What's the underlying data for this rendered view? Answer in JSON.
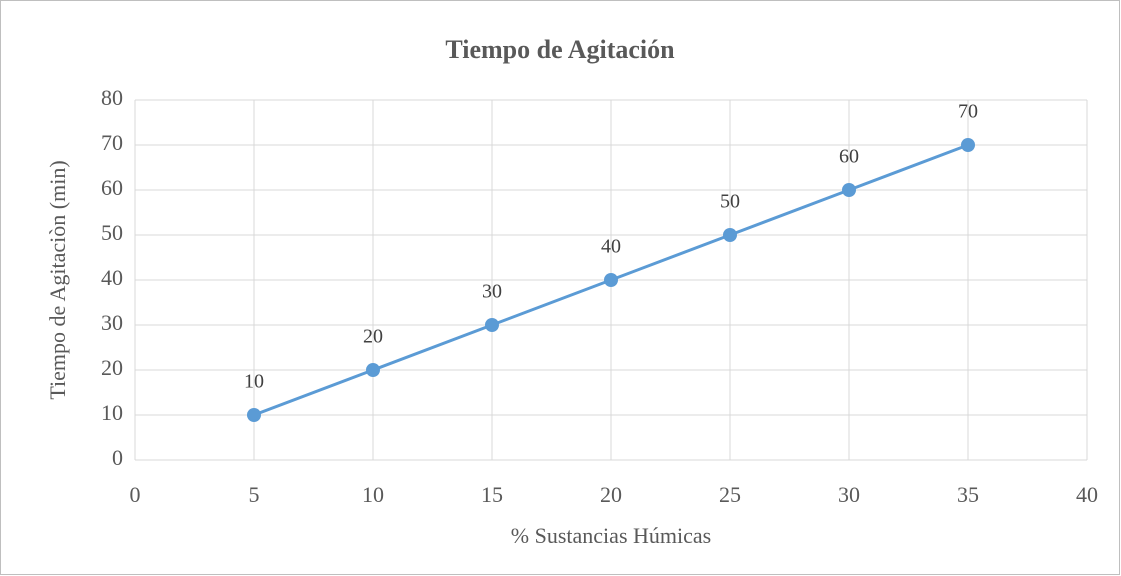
{
  "chart_data": {
    "type": "line",
    "title": "Tiempo de Agitación",
    "x_label": "% Sustancias Húmicas",
    "y_label": "Tiempo de Agitaciòn (min)",
    "x": [
      5,
      10,
      15,
      20,
      25,
      30,
      35
    ],
    "values": [
      10,
      20,
      30,
      40,
      50,
      60,
      70
    ],
    "color": "#5b9bd5",
    "data_labels": true,
    "xlim": [
      0,
      40
    ],
    "xticks": [
      0,
      5,
      10,
      15,
      20,
      25,
      30,
      35,
      40
    ],
    "ylim": [
      0,
      80
    ],
    "yticks": [
      0,
      10,
      20,
      30,
      40,
      50,
      60,
      70,
      80
    ],
    "grid": true
  }
}
